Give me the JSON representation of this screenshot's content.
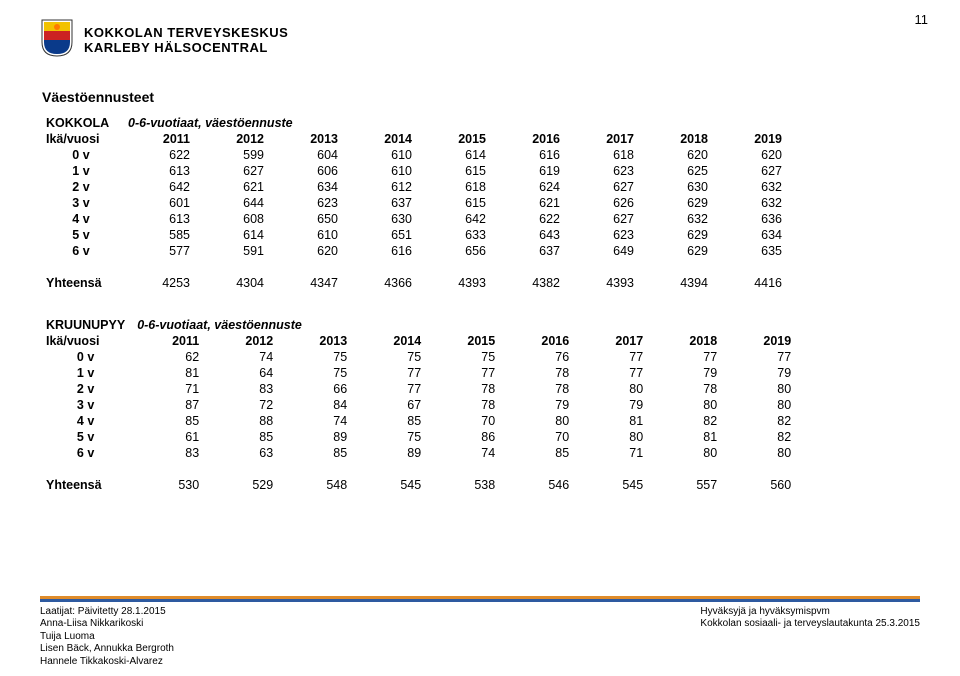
{
  "page_number": "11",
  "header": {
    "org_line1": "KOKKOLAN TERVEYSKESKUS",
    "org_line2": "KARLEBY HÄLSOCENTRAL",
    "shield_colors": {
      "top": "#f2c200",
      "mid": "#c22",
      "bottom": "#0a3a8a",
      "flame": "#ff7a00"
    }
  },
  "section_title": "Väestöennusteet",
  "tables": [
    {
      "corner": "KOKKOLA",
      "subtitle": "0-6-vuotiaat, väestöennuste",
      "row_header": "Ikä/vuosi",
      "years": [
        "2011",
        "2012",
        "2013",
        "2014",
        "2015",
        "2016",
        "2017",
        "2018",
        "2019"
      ],
      "rows": [
        {
          "label": "0 v",
          "vals": [
            "622",
            "599",
            "604",
            "610",
            "614",
            "616",
            "618",
            "620",
            "620"
          ]
        },
        {
          "label": "1 v",
          "vals": [
            "613",
            "627",
            "606",
            "610",
            "615",
            "619",
            "623",
            "625",
            "627"
          ]
        },
        {
          "label": "2 v",
          "vals": [
            "642",
            "621",
            "634",
            "612",
            "618",
            "624",
            "627",
            "630",
            "632"
          ]
        },
        {
          "label": "3 v",
          "vals": [
            "601",
            "644",
            "623",
            "637",
            "615",
            "621",
            "626",
            "629",
            "632"
          ]
        },
        {
          "label": "4 v",
          "vals": [
            "613",
            "608",
            "650",
            "630",
            "642",
            "622",
            "627",
            "632",
            "636"
          ]
        },
        {
          "label": "5 v",
          "vals": [
            "585",
            "614",
            "610",
            "651",
            "633",
            "643",
            "623",
            "629",
            "634"
          ]
        },
        {
          "label": "6 v",
          "vals": [
            "577",
            "591",
            "620",
            "616",
            "656",
            "637",
            "649",
            "629",
            "635"
          ]
        }
      ],
      "total_label": "Yhteensä",
      "totals": [
        "4253",
        "4304",
        "4347",
        "4366",
        "4393",
        "4382",
        "4393",
        "4394",
        "4416"
      ]
    },
    {
      "corner": "KRUUNUPYY",
      "subtitle": "0-6-vuotiaat, väestöennuste",
      "row_header": "Ikä/vuosi",
      "years": [
        "2011",
        "2012",
        "2013",
        "2014",
        "2015",
        "2016",
        "2017",
        "2018",
        "2019"
      ],
      "rows": [
        {
          "label": "0 v",
          "vals": [
            "62",
            "74",
            "75",
            "75",
            "75",
            "76",
            "77",
            "77",
            "77"
          ]
        },
        {
          "label": "1 v",
          "vals": [
            "81",
            "64",
            "75",
            "77",
            "77",
            "78",
            "77",
            "79",
            "79"
          ]
        },
        {
          "label": "2 v",
          "vals": [
            "71",
            "83",
            "66",
            "77",
            "78",
            "78",
            "80",
            "78",
            "80"
          ]
        },
        {
          "label": "3 v",
          "vals": [
            "87",
            "72",
            "84",
            "67",
            "78",
            "79",
            "79",
            "80",
            "80"
          ]
        },
        {
          "label": "4 v",
          "vals": [
            "85",
            "88",
            "74",
            "85",
            "70",
            "80",
            "81",
            "82",
            "82"
          ]
        },
        {
          "label": "5 v",
          "vals": [
            "61",
            "85",
            "89",
            "75",
            "86",
            "70",
            "80",
            "81",
            "82"
          ]
        },
        {
          "label": "6 v",
          "vals": [
            "83",
            "63",
            "85",
            "89",
            "74",
            "85",
            "71",
            "80",
            "80"
          ]
        }
      ],
      "total_label": "Yhteensä",
      "totals": [
        "530",
        "529",
        "548",
        "545",
        "538",
        "546",
        "545",
        "557",
        "560"
      ]
    }
  ],
  "footer": {
    "left": [
      "Laatijat: Päivitetty 28.1.2015",
      "Anna-Liisa Nikkarikoski",
      "Tuija Luoma",
      "Lisen Bäck, Annukka Bergroth",
      "Hannele Tikkakoski-Alvarez"
    ],
    "right": [
      "Hyväksyjä ja hyväksymispvm",
      "Kokkolan sosiaali- ja terveyslautakunta 25.3.2015"
    ]
  }
}
